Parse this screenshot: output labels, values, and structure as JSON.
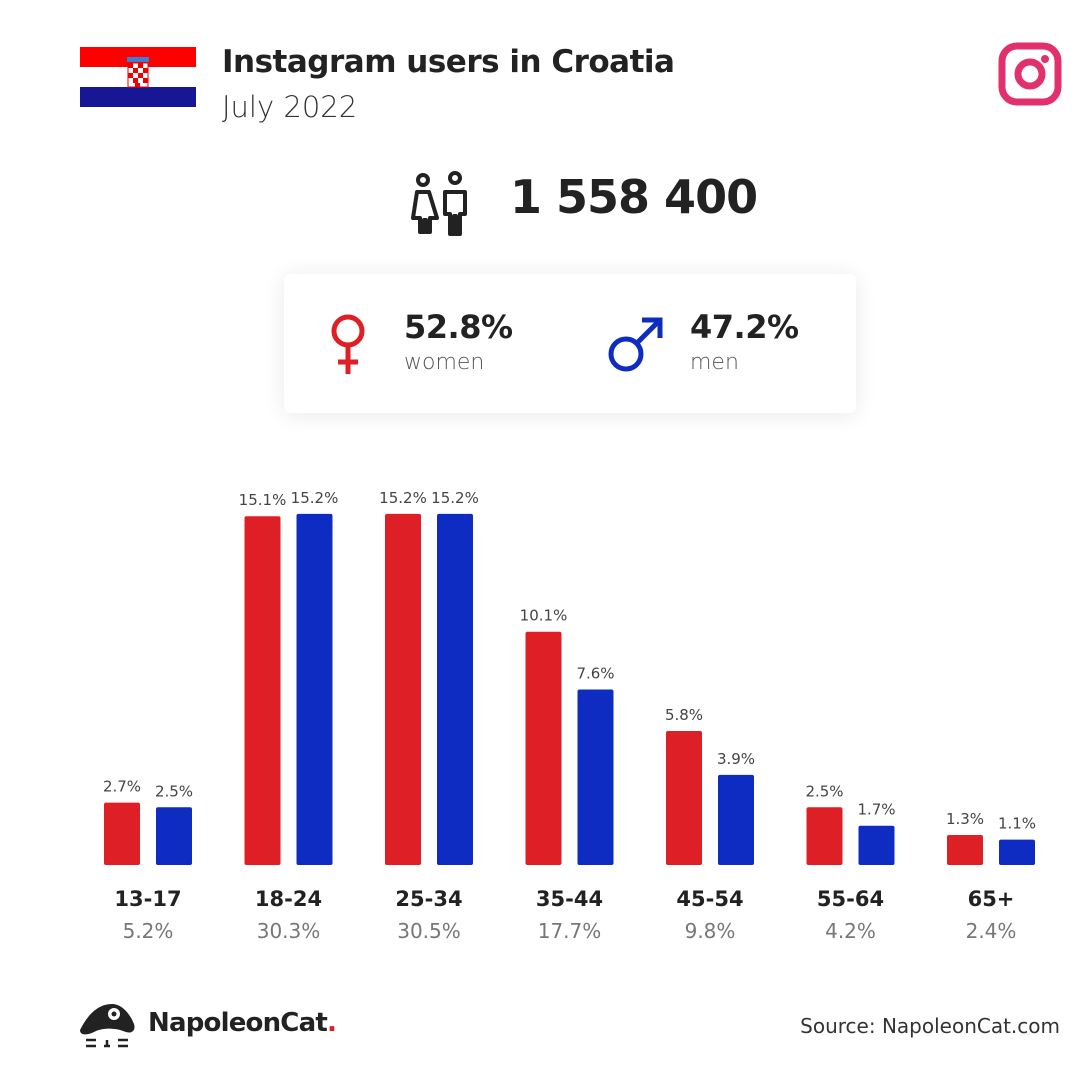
{
  "header": {
    "title": "Instagram users in Croatia",
    "subtitle": "July 2022"
  },
  "total_users": "1 558 400",
  "gender": {
    "women_pct": "52.8%",
    "women_label": "women",
    "men_pct": "47.2%",
    "men_label": "men"
  },
  "colors": {
    "women": "#de1f26",
    "men": "#0e2bc2",
    "instagram": "#e1306c"
  },
  "chart_data": {
    "type": "bar",
    "categories": [
      "13-17",
      "18-24",
      "25-34",
      "35-44",
      "45-54",
      "55-64",
      "65+"
    ],
    "totals": [
      "5.2%",
      "30.3%",
      "30.5%",
      "17.7%",
      "9.8%",
      "4.2%",
      "2.4%"
    ],
    "series": [
      {
        "name": "women",
        "values": [
          2.7,
          15.1,
          15.2,
          10.1,
          5.8,
          2.5,
          1.3
        ]
      },
      {
        "name": "men",
        "values": [
          2.5,
          15.2,
          15.2,
          7.6,
          3.9,
          1.7,
          1.1
        ]
      }
    ],
    "value_labels": [
      [
        "2.7%",
        "15.1%",
        "15.2%",
        "10.1%",
        "5.8%",
        "2.5%",
        "1.3%"
      ],
      [
        "2.5%",
        "15.2%",
        "15.2%",
        "7.6%",
        "3.9%",
        "1.7%",
        "1.1%"
      ]
    ],
    "ylim": [
      0,
      16
    ]
  },
  "footer": {
    "brand": "NapoleonCat",
    "brand_dot": ".",
    "source": "Source: NapoleonCat.com"
  }
}
